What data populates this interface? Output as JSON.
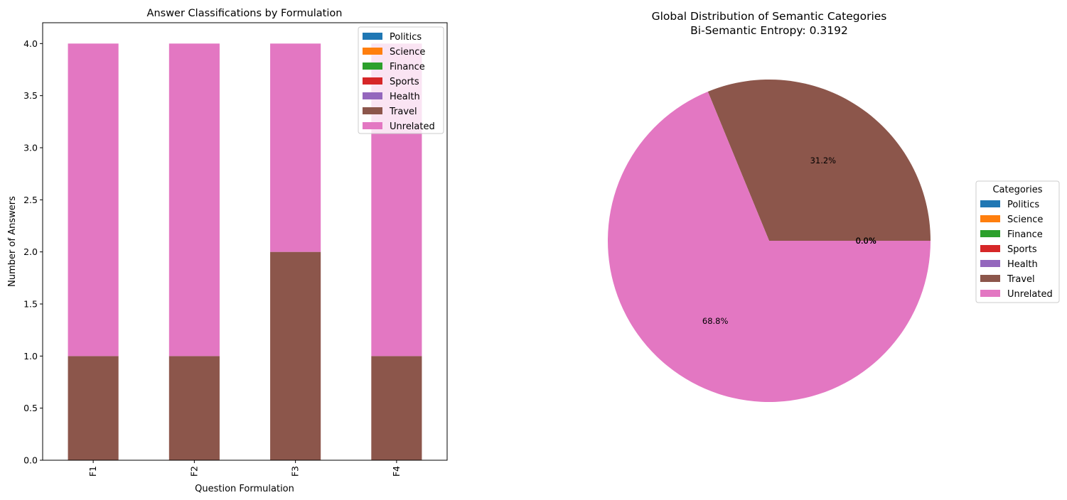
{
  "colors": {
    "Politics": "#1f77b4",
    "Science": "#ff7f0e",
    "Finance": "#2ca02c",
    "Sports": "#d62728",
    "Health": "#9467bd",
    "Travel": "#8c564b",
    "Unrelated": "#e377c2"
  },
  "chart_data": [
    {
      "type": "bar",
      "stacked": true,
      "title": "Answer Classifications by Formulation",
      "xlabel": "Question Formulation",
      "ylabel": "Number of Answers",
      "categories": [
        "F1",
        "F2",
        "F3",
        "F4"
      ],
      "series": [
        {
          "name": "Politics",
          "values": [
            0,
            0,
            0,
            0
          ]
        },
        {
          "name": "Science",
          "values": [
            0,
            0,
            0,
            0
          ]
        },
        {
          "name": "Finance",
          "values": [
            0,
            0,
            0,
            0
          ]
        },
        {
          "name": "Sports",
          "values": [
            0,
            0,
            0,
            0
          ]
        },
        {
          "name": "Health",
          "values": [
            0,
            0,
            0,
            0
          ]
        },
        {
          "name": "Travel",
          "values": [
            1,
            1,
            2,
            1
          ]
        },
        {
          "name": "Unrelated",
          "values": [
            3,
            3,
            2,
            3
          ]
        }
      ],
      "ylim": [
        0,
        4.2
      ],
      "yticks": [
        "0.0",
        "0.5",
        "1.0",
        "1.5",
        "2.0",
        "2.5",
        "3.0",
        "3.5",
        "4.0"
      ],
      "grid": false,
      "legend_position": "top-right"
    },
    {
      "type": "pie",
      "title_lines": [
        "Global Distribution of Semantic Categories",
        "Bi-Semantic Entropy: 0.3192"
      ],
      "legend_title": "Categories",
      "legend_position": "right",
      "slices": [
        {
          "name": "Politics",
          "value": 0.0,
          "label": "0.0%"
        },
        {
          "name": "Science",
          "value": 0.0,
          "label": "0.0%"
        },
        {
          "name": "Finance",
          "value": 0.0,
          "label": "0.0%"
        },
        {
          "name": "Sports",
          "value": 0.0,
          "label": "0.0%"
        },
        {
          "name": "Health",
          "value": 0.0,
          "label": "0.0%"
        },
        {
          "name": "Travel",
          "value": 31.2,
          "label": "31.2%"
        },
        {
          "name": "Unrelated",
          "value": 68.8,
          "label": "68.8%"
        }
      ]
    }
  ]
}
